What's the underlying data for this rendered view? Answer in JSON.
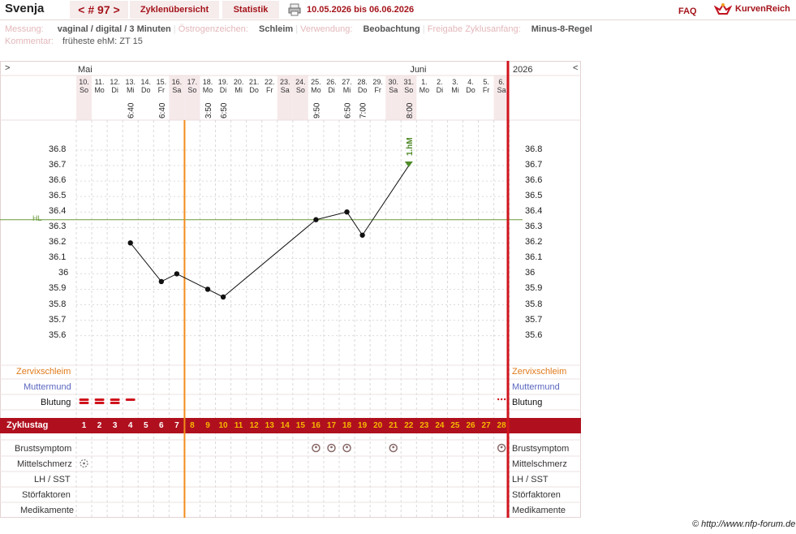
{
  "header": {
    "user": "Svenja",
    "cycle_label": "< # 97 >",
    "tab_overview": "Zyklenübersicht",
    "tab_stats": "Statistik",
    "date_range": "10.05.2026 bis 06.06.2026",
    "faq": "FAQ",
    "brand": "KurvenReich"
  },
  "info": {
    "measure_label": "Messung:",
    "measure_value": "vaginal / digital / 3 Minuten",
    "estrogen_label": "Östrogenzeichen:",
    "estrogen_value": "Schleim",
    "usage_label": "Verwendung:",
    "usage_value": "Beobachtung",
    "release_label": "Freigabe Zyklusanfang:",
    "release_value": "Minus-8-Regel",
    "comment_label": "Kommentar:",
    "comment_value": "früheste ehM: ZT 15"
  },
  "chart": {
    "nav_prev": ">",
    "nav_next": "<",
    "month_may": "Mai",
    "month_june": "Juni",
    "year": "2026",
    "hl_label": "HL",
    "peak_label": "1.hM",
    "days": [
      {
        "d": "10.",
        "w": "So"
      },
      {
        "d": "11.",
        "w": "Mo"
      },
      {
        "d": "12.",
        "w": "Di"
      },
      {
        "d": "13.",
        "w": "Mi"
      },
      {
        "d": "14.",
        "w": "Do"
      },
      {
        "d": "15.",
        "w": "Fr"
      },
      {
        "d": "16.",
        "w": "Sa"
      },
      {
        "d": "17.",
        "w": "So"
      },
      {
        "d": "18.",
        "w": "Mo"
      },
      {
        "d": "19.",
        "w": "Di"
      },
      {
        "d": "20.",
        "w": "Mi"
      },
      {
        "d": "21.",
        "w": "Do"
      },
      {
        "d": "22.",
        "w": "Fr"
      },
      {
        "d": "23.",
        "w": "Sa"
      },
      {
        "d": "24.",
        "w": "So"
      },
      {
        "d": "25.",
        "w": "Mo"
      },
      {
        "d": "26.",
        "w": "Di"
      },
      {
        "d": "27.",
        "w": "Mi"
      },
      {
        "d": "28.",
        "w": "Do"
      },
      {
        "d": "29.",
        "w": "Fr"
      },
      {
        "d": "30.",
        "w": "Sa"
      },
      {
        "d": "31.",
        "w": "So"
      },
      {
        "d": "1.",
        "w": "Mo"
      },
      {
        "d": "2.",
        "w": "Di"
      },
      {
        "d": "3.",
        "w": "Mi"
      },
      {
        "d": "4.",
        "w": "Do"
      },
      {
        "d": "5.",
        "w": "Fr"
      },
      {
        "d": "6.",
        "w": "Sa"
      }
    ],
    "times": {
      "3": "6:40",
      "5": "6:40",
      "8": "3:50",
      "9": "6:50",
      "15": "9:50",
      "17": "6:50",
      "18": "7:00",
      "21": "8:00"
    },
    "rows": {
      "cervix": "Zervixschleim",
      "cervix_pos": "Muttermund",
      "bleeding": "Blutung",
      "cycle_day": "Zyklustag",
      "breast": "Brustsymptom",
      "midpain": "Mittelschmerz",
      "lh": "LH / SST",
      "disturb": "Störfaktoren",
      "meds": "Medikamente"
    },
    "colors": {
      "accent": "#a4141b",
      "orange": "#f28c1a",
      "hl": "#6a9a3a",
      "zt_bar": "#b0101e"
    }
  },
  "chart_data": {
    "type": "line",
    "ylabel": "",
    "ylim": [
      35.5,
      36.8
    ],
    "yticks": [
      "36.8",
      "36.7",
      "36.6",
      "36.5",
      "36.4",
      "36.3",
      "36.2",
      "36.1",
      "36",
      "35.9",
      "35.8",
      "35.7",
      "35.6"
    ],
    "series": [
      {
        "values": [
          {
            "day": 4,
            "t": 36.2
          },
          {
            "day": 6,
            "t": 35.95
          },
          {
            "day": 7,
            "t": 36.0
          },
          {
            "day": 9,
            "t": 35.9
          },
          {
            "day": 10,
            "t": 35.85
          },
          {
            "day": 16,
            "t": 36.35
          },
          {
            "day": 18,
            "t": 36.4
          },
          {
            "day": 19,
            "t": 36.25
          },
          {
            "day": 22,
            "t": 36.7
          }
        ]
      }
    ],
    "hl": 36.35
  },
  "footer": {
    "copyright": "© http://www.nfp-forum.de"
  }
}
